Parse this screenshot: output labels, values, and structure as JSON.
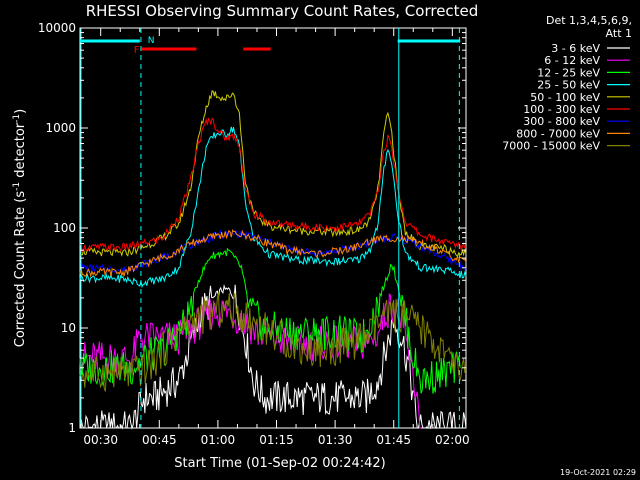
{
  "chart_data": {
    "type": "line",
    "title": "RHESSI Observing Summary Count Rates, Corrected",
    "xlabel": "Start Time (01-Sep-02 00:24:42)",
    "ylabel_main": "Corrected Count Rate (s",
    "ylabel_sup": "-1",
    "ylabel_mid": " detector",
    "ylabel_sup2": "-1",
    "ylabel_end": ")",
    "yscale": "log",
    "ylim": [
      1,
      10000
    ],
    "xlim_minutes": [
      24.7,
      123.5
    ],
    "x_ticks": [
      "00:30",
      "00:45",
      "01:00",
      "01:15",
      "01:30",
      "01:45",
      "02:00"
    ],
    "y_ticks": [
      "1",
      "10",
      "100",
      "1000",
      "10000"
    ],
    "legend_header": [
      "Det 1,3,4,5,6,9,",
      "Att 1"
    ],
    "timestamp": "19-Oct-2021 02:29",
    "flags": {
      "N": "N",
      "F": "F"
    },
    "flag_colors": {
      "night": "#00ffff",
      "flare": "#ff0000"
    },
    "night_intervals": [
      [
        24.7,
        40.0
      ],
      [
        106.0,
        122.0
      ]
    ],
    "flare_intervals": [
      [
        40.5,
        54.5
      ],
      [
        66.5,
        73.5
      ]
    ],
    "vertical_lines": [
      {
        "t": 40.3,
        "style": "dashed"
      },
      {
        "t": 106.3,
        "style": "solid"
      },
      {
        "t": 121.8,
        "style": "dashed"
      }
    ],
    "series": [
      {
        "name": "3 - 6 keV",
        "color": "#ffffff",
        "points": [
          [
            24.7,
            1
          ],
          [
            38,
            1
          ],
          [
            41,
            2
          ],
          [
            44,
            2
          ],
          [
            50,
            3
          ],
          [
            53,
            7
          ],
          [
            56,
            15
          ],
          [
            59,
            20
          ],
          [
            61,
            24
          ],
          [
            63,
            24
          ],
          [
            65,
            18
          ],
          [
            67,
            8
          ],
          [
            69,
            3
          ],
          [
            72,
            2
          ],
          [
            80,
            2
          ],
          [
            90,
            2
          ],
          [
            98,
            2
          ],
          [
            101,
            3
          ],
          [
            103,
            6
          ],
          [
            105,
            12
          ],
          [
            107,
            8
          ],
          [
            109,
            4
          ],
          [
            111,
            1
          ],
          [
            123.5,
            1
          ]
        ]
      },
      {
        "name": "6 - 12 keV",
        "color": "#ff00ff",
        "points": [
          [
            24.7,
            5
          ],
          [
            38,
            5
          ],
          [
            40,
            8
          ],
          [
            50,
            8
          ],
          [
            55,
            11
          ],
          [
            58,
            14
          ],
          [
            62,
            15
          ],
          [
            66,
            12
          ],
          [
            70,
            9
          ],
          [
            78,
            7
          ],
          [
            90,
            7
          ],
          [
            98,
            7
          ],
          [
            101,
            9
          ],
          [
            103,
            14
          ],
          [
            105,
            18
          ],
          [
            107,
            12
          ],
          [
            109,
            5
          ],
          [
            111,
            2
          ],
          [
            112,
            1
          ]
        ]
      },
      {
        "name": "12 - 25 keV",
        "color": "#00ff00",
        "points": [
          [
            24.7,
            4
          ],
          [
            38,
            4
          ],
          [
            41,
            5
          ],
          [
            46,
            6
          ],
          [
            52,
            12
          ],
          [
            55,
            30
          ],
          [
            58,
            52
          ],
          [
            61,
            56
          ],
          [
            63,
            58
          ],
          [
            66,
            40
          ],
          [
            68,
            16
          ],
          [
            72,
            10
          ],
          [
            80,
            9
          ],
          [
            90,
            9
          ],
          [
            97,
            8
          ],
          [
            100,
            14
          ],
          [
            103,
            30
          ],
          [
            104.5,
            45
          ],
          [
            106,
            28
          ],
          [
            108,
            12
          ],
          [
            110,
            5
          ],
          [
            112,
            3
          ],
          [
            122,
            4
          ]
        ]
      },
      {
        "name": "25 - 50 keV",
        "color": "#00ffff",
        "points": [
          [
            24.7,
            32
          ],
          [
            36,
            31
          ],
          [
            40,
            28
          ],
          [
            46,
            31
          ],
          [
            50,
            40
          ],
          [
            53,
            90
          ],
          [
            55,
            230
          ],
          [
            57,
            650
          ],
          [
            59,
            840
          ],
          [
            60.5,
            900
          ],
          [
            62,
            860
          ],
          [
            64,
            1000
          ],
          [
            65.5,
            650
          ],
          [
            67,
            190
          ],
          [
            69,
            80
          ],
          [
            73,
            55
          ],
          [
            80,
            48
          ],
          [
            90,
            46
          ],
          [
            96,
            48
          ],
          [
            99,
            62
          ],
          [
            101,
            110
          ],
          [
            102.5,
            380
          ],
          [
            103.5,
            650
          ],
          [
            104.5,
            450
          ],
          [
            106,
            140
          ],
          [
            108,
            55
          ],
          [
            112,
            40
          ],
          [
            118,
            38
          ],
          [
            123.5,
            33
          ]
        ]
      },
      {
        "name": "50 - 100 keV",
        "color": "#cccc00",
        "points": [
          [
            24.7,
            58
          ],
          [
            36,
            56
          ],
          [
            40,
            62
          ],
          [
            46,
            80
          ],
          [
            50,
            110
          ],
          [
            53,
            250
          ],
          [
            55,
            800
          ],
          [
            57,
            1600
          ],
          [
            58.5,
            2300
          ],
          [
            60.5,
            2050
          ],
          [
            62,
            1950
          ],
          [
            64,
            2250
          ],
          [
            65.5,
            1350
          ],
          [
            67,
            300
          ],
          [
            69,
            140
          ],
          [
            73,
            105
          ],
          [
            80,
            95
          ],
          [
            90,
            90
          ],
          [
            96,
            95
          ],
          [
            99,
            120
          ],
          [
            101,
            250
          ],
          [
            102.5,
            900
          ],
          [
            103.5,
            1400
          ],
          [
            104.5,
            900
          ],
          [
            106,
            250
          ],
          [
            108,
            90
          ],
          [
            112,
            65
          ],
          [
            118,
            62
          ],
          [
            123.5,
            55
          ]
        ]
      },
      {
        "name": "100 - 300 keV",
        "color": "#ff0000",
        "points": [
          [
            24.7,
            64
          ],
          [
            36,
            64
          ],
          [
            40,
            68
          ],
          [
            46,
            80
          ],
          [
            50,
            130
          ],
          [
            53,
            300
          ],
          [
            55,
            700
          ],
          [
            57,
            1150
          ],
          [
            58.5,
            1200
          ],
          [
            60.5,
            900
          ],
          [
            62,
            800
          ],
          [
            64,
            830
          ],
          [
            65.5,
            700
          ],
          [
            67,
            250
          ],
          [
            69,
            140
          ],
          [
            73,
            115
          ],
          [
            80,
            105
          ],
          [
            90,
            100
          ],
          [
            96,
            110
          ],
          [
            99,
            140
          ],
          [
            101,
            240
          ],
          [
            102.5,
            600
          ],
          [
            103.5,
            780
          ],
          [
            104.5,
            650
          ],
          [
            106,
            250
          ],
          [
            108,
            115
          ],
          [
            112,
            85
          ],
          [
            118,
            72
          ],
          [
            123.5,
            65
          ]
        ]
      },
      {
        "name": "300 - 800 keV",
        "color": "#0000ff",
        "points": [
          [
            24.7,
            40
          ],
          [
            36,
            38
          ],
          [
            42,
            45
          ],
          [
            48,
            55
          ],
          [
            54,
            70
          ],
          [
            60,
            85
          ],
          [
            65,
            88
          ],
          [
            70,
            80
          ],
          [
            78,
            62
          ],
          [
            86,
            55
          ],
          [
            94,
            62
          ],
          [
            100,
            75
          ],
          [
            105,
            80
          ],
          [
            110,
            72
          ],
          [
            116,
            55
          ],
          [
            123.5,
            40
          ]
        ]
      },
      {
        "name": "800 - 7000 keV",
        "color": "#ff8800",
        "points": [
          [
            24.7,
            36
          ],
          [
            36,
            36
          ],
          [
            42,
            45
          ],
          [
            48,
            55
          ],
          [
            54,
            72
          ],
          [
            60,
            85
          ],
          [
            65,
            88
          ],
          [
            70,
            78
          ],
          [
            78,
            60
          ],
          [
            86,
            55
          ],
          [
            94,
            62
          ],
          [
            100,
            76
          ],
          [
            105,
            80
          ],
          [
            110,
            74
          ],
          [
            116,
            60
          ],
          [
            123.5,
            45
          ]
        ]
      },
      {
        "name": "7000 - 15000 keV",
        "color": "#808000",
        "points": [
          [
            24.7,
            3.5
          ],
          [
            38,
            3.5
          ],
          [
            42,
            4
          ],
          [
            46,
            6
          ],
          [
            50,
            9
          ],
          [
            54,
            12
          ],
          [
            58,
            14
          ],
          [
            62,
            16
          ],
          [
            66,
            14
          ],
          [
            70,
            11
          ],
          [
            76,
            8
          ],
          [
            82,
            6
          ],
          [
            88,
            6
          ],
          [
            94,
            7
          ],
          [
            98,
            8
          ],
          [
            102,
            12
          ],
          [
            105,
            14
          ],
          [
            109,
            12
          ],
          [
            113,
            9
          ],
          [
            117,
            6
          ],
          [
            121,
            4
          ],
          [
            123.5,
            3.5
          ]
        ]
      }
    ]
  }
}
